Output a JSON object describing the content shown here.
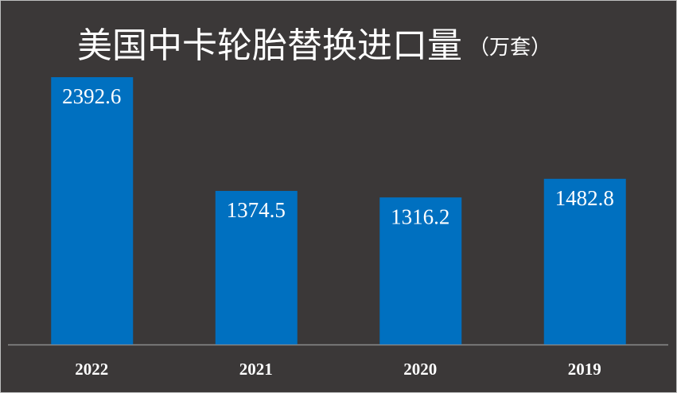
{
  "chart_data": {
    "type": "bar",
    "title": "美国中卡轮胎替换进口量",
    "unit": "（万套）",
    "categories": [
      "2022",
      "2021",
      "2020",
      "2019"
    ],
    "values": [
      2392.6,
      1374.5,
      1316.2,
      1482.8
    ],
    "color": "#0070c0"
  }
}
